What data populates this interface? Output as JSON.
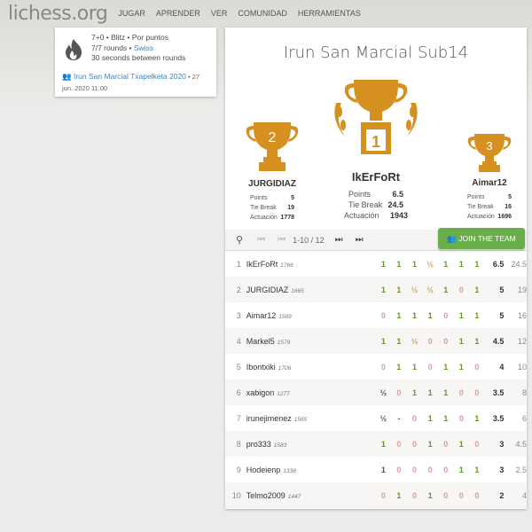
{
  "header": {
    "logo_main": "lichess",
    "logo_tld": ".org",
    "nav": [
      "JUGAR",
      "APRENDER",
      "VER",
      "COMUNIDAD",
      "HERRAMIENTAS"
    ]
  },
  "side": {
    "line1": "7+0 • Blitz • Por puntos",
    "line2_a": "7/7 rounds • ",
    "line2_link": "Swiss",
    "line3": "30 seconds between rounds",
    "team": "Irun San Marcial Txapelketa 2020",
    "date_a": " • 27",
    "date_b": "jun. 2020 11:00",
    "icon": "fire-icon"
  },
  "tournament": {
    "title": "Irun San Marcial Sub14"
  },
  "podium": [
    {
      "rank": "1",
      "name": "IkErFoRt",
      "points": "6.5",
      "tiebreak": "24.5",
      "perf": "1943"
    },
    {
      "rank": "2",
      "name": "JURGIDIAZ",
      "points": "5",
      "tiebreak": "19",
      "perf": "1778"
    },
    {
      "rank": "3",
      "name": "Aimar12",
      "points": "5",
      "tiebreak": "16",
      "perf": "1696"
    }
  ],
  "labels": {
    "points": "Points",
    "tiebreak": "Tie Break",
    "perf": "Actuación"
  },
  "pager": {
    "text": "1-10 / 12",
    "join": "JOIN THE TEAM"
  },
  "colors": {
    "win": "#629924",
    "loss": "#d59e9e",
    "draw": "#d0a060",
    "trophy": "#d59020",
    "join": "#6aae4a"
  },
  "standings": [
    {
      "rank": "1",
      "name": "IkErFoRt",
      "rating": "1766",
      "results": [
        [
          "1",
          "w"
        ],
        [
          "1",
          "w"
        ],
        [
          "1",
          "w"
        ],
        [
          "½",
          "d"
        ],
        [
          "1",
          "w"
        ],
        [
          "1",
          "w"
        ],
        [
          "1",
          "w"
        ]
      ],
      "points": "6.5",
      "tb": "24.5"
    },
    {
      "rank": "2",
      "name": "JURGIDIAZ",
      "rating": "1665",
      "results": [
        [
          "1",
          "w"
        ],
        [
          "1",
          "w"
        ],
        [
          "½",
          "d"
        ],
        [
          "½",
          "d"
        ],
        [
          "1",
          "w"
        ],
        [
          "0",
          "l"
        ],
        [
          "1",
          "w"
        ]
      ],
      "points": "5",
      "tb": "19"
    },
    {
      "rank": "3",
      "name": "Aimar12",
      "rating": "1589",
      "results": [
        [
          "0",
          "l"
        ],
        [
          "1",
          "w"
        ],
        [
          "1",
          "w"
        ],
        [
          "1",
          "w"
        ],
        [
          "0",
          "l"
        ],
        [
          "1",
          "w"
        ],
        [
          "1",
          "w"
        ]
      ],
      "points": "5",
      "tb": "16"
    },
    {
      "rank": "4",
      "name": "Markel5",
      "rating": "1579",
      "results": [
        [
          "1",
          "w"
        ],
        [
          "1",
          "w"
        ],
        [
          "½",
          "d"
        ],
        [
          "0",
          "l"
        ],
        [
          "0",
          "l"
        ],
        [
          "1",
          "w"
        ],
        [
          "1",
          "w"
        ]
      ],
      "points": "4.5",
      "tb": "12"
    },
    {
      "rank": "5",
      "name": "Ibontxiki",
      "rating": "1706",
      "results": [
        [
          "0",
          "l"
        ],
        [
          "1",
          "w"
        ],
        [
          "1",
          "w"
        ],
        [
          "0",
          "l"
        ],
        [
          "1",
          "w"
        ],
        [
          "1",
          "w"
        ],
        [
          "0",
          "l"
        ]
      ],
      "points": "4",
      "tb": "10"
    },
    {
      "rank": "6",
      "name": "xabigon",
      "rating": "1277",
      "results": [
        [
          "½",
          "o"
        ],
        [
          "0",
          "l"
        ],
        [
          "1",
          "w"
        ],
        [
          "1",
          "w"
        ],
        [
          "1",
          "w"
        ],
        [
          "0",
          "l"
        ],
        [
          "0",
          "l"
        ]
      ],
      "points": "3.5",
      "tb": "8"
    },
    {
      "rank": "7",
      "name": "irunejimenez",
      "rating": "1565",
      "results": [
        [
          "½",
          "o"
        ],
        [
          "-",
          "o"
        ],
        [
          "0",
          "l"
        ],
        [
          "1",
          "w"
        ],
        [
          "1",
          "w"
        ],
        [
          "0",
          "l"
        ],
        [
          "1",
          "w"
        ]
      ],
      "points": "3.5",
      "tb": "6"
    },
    {
      "rank": "8",
      "name": "pro333",
      "rating": "1583",
      "results": [
        [
          "1",
          "w"
        ],
        [
          "0",
          "l"
        ],
        [
          "0",
          "l"
        ],
        [
          "1",
          "w"
        ],
        [
          "0",
          "l"
        ],
        [
          "1",
          "w"
        ],
        [
          "0",
          "l"
        ]
      ],
      "points": "3",
      "tb": "4.5"
    },
    {
      "rank": "9",
      "name": "Hodeienp",
      "rating": "1338",
      "results": [
        [
          "1",
          "o"
        ],
        [
          "0",
          "l"
        ],
        [
          "0",
          "l"
        ],
        [
          "0",
          "l"
        ],
        [
          "0",
          "l"
        ],
        [
          "1",
          "w"
        ],
        [
          "1",
          "w"
        ]
      ],
      "points": "3",
      "tb": "2.5"
    },
    {
      "rank": "10",
      "name": "Telmo2009",
      "rating": "1447",
      "results": [
        [
          "0",
          "l"
        ],
        [
          "1",
          "w"
        ],
        [
          "0",
          "l"
        ],
        [
          "1",
          "w"
        ],
        [
          "0",
          "l"
        ],
        [
          "0",
          "l"
        ],
        [
          "0",
          "l"
        ]
      ],
      "points": "2",
      "tb": "4"
    }
  ]
}
